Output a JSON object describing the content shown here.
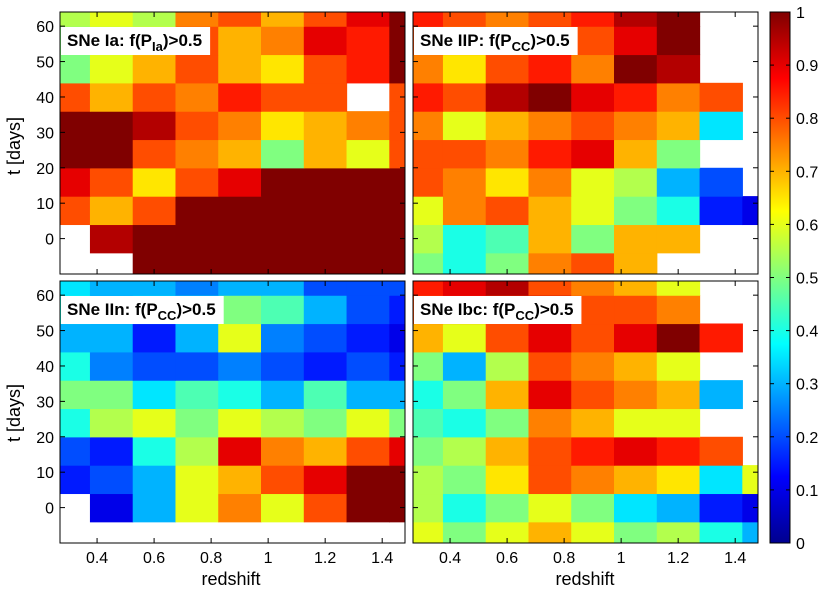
{
  "colors": {
    "jet": [
      "#00008f",
      "#0000ff",
      "#0080ff",
      "#00ffff",
      "#80ff80",
      "#ffff00",
      "#ff8000",
      "#ff0000",
      "#800000"
    ]
  },
  "chart_data": {
    "type": "heatmap",
    "title": "",
    "x_ticks": [
      0.4,
      0.6,
      0.8,
      1,
      1.2,
      1.4
    ],
    "x_tick_labels": [
      "0.4",
      "0.6",
      "0.8",
      "1",
      "1.2",
      "1.4"
    ],
    "y_ticks": [
      0,
      10,
      20,
      30,
      40,
      50,
      60
    ],
    "y_tick_labels": [
      "0",
      "10",
      "20",
      "30",
      "40",
      "50",
      "60"
    ],
    "xlabel": "redshift",
    "ylabel": "t [days]",
    "xlim": [
      0.27,
      1.48
    ],
    "ylim": [
      -10,
      64
    ],
    "grid_x": [
      0.3,
      0.45,
      0.6,
      0.75,
      0.9,
      1.05,
      1.2,
      1.35,
      1.5
    ],
    "grid_y": [
      -8,
      0,
      8,
      16,
      24,
      32,
      40,
      48,
      56,
      64
    ],
    "colorbar": {
      "min": 0,
      "max": 1,
      "ticks": [
        0,
        0.1,
        0.2,
        0.3,
        0.4,
        0.5,
        0.6,
        0.7,
        0.8,
        0.9,
        1
      ],
      "tick_labels": [
        "0",
        "0.1",
        "0.2",
        "0.3",
        "0.4",
        "0.5",
        "0.6",
        "0.7",
        "0.8",
        "0.9",
        "1"
      ]
    },
    "panels": [
      {
        "label_main": "SNe Ia: f(P",
        "label_sub": "Ia",
        "label_end": ")>0.5",
        "values": [
          [
            null,
            null,
            1.0,
            1.0,
            1.0,
            1.0,
            1.0,
            1.0,
            1.0
          ],
          [
            null,
            0.95,
            1.0,
            1.0,
            1.0,
            1.0,
            1.0,
            1.0,
            1.0
          ],
          [
            0.8,
            0.7,
            0.8,
            1.0,
            1.0,
            1.0,
            1.0,
            1.0,
            1.0
          ],
          [
            0.9,
            0.8,
            0.65,
            0.8,
            0.9,
            1.0,
            1.0,
            1.0,
            1.0
          ],
          [
            1.0,
            1.0,
            0.8,
            0.75,
            0.7,
            0.5,
            0.7,
            0.6,
            0.8
          ],
          [
            1.0,
            1.0,
            0.95,
            0.8,
            0.75,
            0.65,
            0.7,
            0.75,
            0.8
          ],
          [
            0.8,
            0.7,
            0.8,
            0.75,
            0.85,
            0.8,
            0.8,
            null,
            0.8
          ],
          [
            0.5,
            0.6,
            0.7,
            0.8,
            0.7,
            0.65,
            0.8,
            0.85,
            1.0
          ],
          [
            0.5,
            0.55,
            0.6,
            0.8,
            0.7,
            0.75,
            0.9,
            0.85,
            1.0
          ],
          [
            0.55,
            0.6,
            0.55,
            0.75,
            0.8,
            0.7,
            0.8,
            0.9,
            1.0
          ]
        ]
      },
      {
        "label_main": "SNe IIP: f(P",
        "label_sub": "CC",
        "label_end": ")>0.5",
        "values": [
          [
            0.5,
            0.4,
            0.5,
            0.75,
            0.8,
            0.7,
            null,
            null,
            null
          ],
          [
            0.55,
            0.4,
            0.45,
            0.7,
            0.5,
            0.7,
            0.7,
            null,
            null
          ],
          [
            0.6,
            0.75,
            0.8,
            0.7,
            0.6,
            0.5,
            0.4,
            0.15,
            0.1
          ],
          [
            0.8,
            0.75,
            0.65,
            0.75,
            0.6,
            0.55,
            0.3,
            0.2,
            null
          ],
          [
            0.8,
            0.8,
            0.75,
            0.85,
            0.9,
            0.7,
            0.5,
            null,
            null
          ],
          [
            0.75,
            0.6,
            0.7,
            0.75,
            0.8,
            0.75,
            0.7,
            0.35,
            null
          ],
          [
            0.85,
            0.8,
            0.95,
            1.0,
            0.9,
            0.85,
            0.75,
            0.8,
            null
          ],
          [
            0.75,
            0.65,
            0.8,
            0.85,
            0.75,
            1.0,
            0.95,
            null,
            null
          ],
          [
            0.8,
            0.75,
            0.75,
            0.85,
            0.8,
            0.9,
            1.0,
            null,
            null
          ],
          [
            0.85,
            0.8,
            0.75,
            0.8,
            0.85,
            0.95,
            1.0,
            null,
            null
          ]
        ]
      },
      {
        "label_main": "SNe IIn: f(P",
        "label_sub": "CC",
        "label_end": ")>0.5",
        "values": [
          [
            null,
            null,
            null,
            null,
            null,
            null,
            null,
            null,
            null
          ],
          [
            null,
            0.1,
            0.3,
            0.6,
            0.75,
            0.6,
            0.8,
            1.0,
            1.0
          ],
          [
            0.15,
            0.2,
            0.3,
            0.6,
            0.7,
            0.8,
            0.9,
            1.0,
            1.0
          ],
          [
            0.2,
            0.15,
            0.4,
            0.55,
            0.9,
            0.75,
            0.7,
            0.8,
            0.9
          ],
          [
            0.4,
            0.55,
            0.6,
            0.5,
            0.6,
            0.55,
            0.5,
            0.6,
            0.5
          ],
          [
            0.5,
            0.5,
            0.35,
            0.45,
            0.4,
            0.3,
            0.45,
            0.3,
            0.3
          ],
          [
            0.4,
            0.25,
            0.2,
            0.2,
            0.25,
            0.2,
            0.15,
            0.2,
            0.15
          ],
          [
            0.3,
            0.3,
            0.15,
            0.3,
            0.6,
            0.25,
            0.2,
            0.15,
            0.1
          ],
          [
            0.4,
            0.3,
            0.35,
            0.4,
            0.5,
            0.45,
            0.3,
            0.2,
            0.15
          ],
          [
            0.35,
            0.3,
            0.3,
            0.25,
            0.3,
            0.3,
            0.2,
            0.2,
            0.2
          ]
        ]
      },
      {
        "label_main": "SNe Ibc: f(P",
        "label_sub": "CC",
        "label_end": ")>0.5",
        "values": [
          [
            0.6,
            0.5,
            0.6,
            0.7,
            0.6,
            0.5,
            0.55,
            0.4,
            0.3
          ],
          [
            0.55,
            0.4,
            0.5,
            0.6,
            0.5,
            0.35,
            0.3,
            0.15,
            0.1
          ],
          [
            0.55,
            0.5,
            0.65,
            0.8,
            0.75,
            0.7,
            0.65,
            0.35,
            0.6
          ],
          [
            0.5,
            0.55,
            0.7,
            0.8,
            0.85,
            0.9,
            0.85,
            0.8,
            null
          ],
          [
            0.45,
            0.4,
            0.5,
            0.75,
            0.7,
            0.6,
            0.6,
            null,
            null
          ],
          [
            0.4,
            0.5,
            0.7,
            0.9,
            0.8,
            0.75,
            0.7,
            0.3,
            null
          ],
          [
            0.5,
            0.3,
            0.55,
            0.8,
            0.75,
            0.7,
            0.6,
            null,
            null
          ],
          [
            0.7,
            0.6,
            0.8,
            0.9,
            0.8,
            0.9,
            1.0,
            0.85,
            null
          ],
          [
            0.8,
            0.85,
            0.8,
            0.95,
            0.8,
            0.8,
            0.75,
            null,
            null
          ],
          [
            0.85,
            0.9,
            0.95,
            0.8,
            0.75,
            0.7,
            0.6,
            null,
            null
          ]
        ]
      }
    ]
  }
}
